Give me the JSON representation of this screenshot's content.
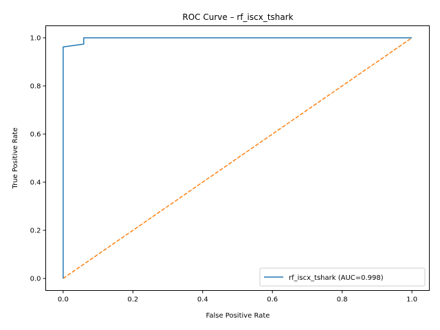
{
  "chart_data": {
    "type": "line",
    "title": "ROC Curve – rf_iscx_tshark",
    "xlabel": "False Positive Rate",
    "ylabel": "True Positive Rate",
    "xlim": [
      -0.05,
      1.05
    ],
    "ylim": [
      -0.05,
      1.05
    ],
    "xticks": [
      "0.0",
      "0.2",
      "0.4",
      "0.6",
      "0.8",
      "1.0"
    ],
    "yticks": [
      "0.0",
      "0.2",
      "0.4",
      "0.6",
      "0.8",
      "1.0"
    ],
    "grid": false,
    "legend_position": "lower-right",
    "series": [
      {
        "name": "rf_iscx_tshark (AUC=0.998)",
        "color": "#1f77b4",
        "style": "solid",
        "x": [
          0.0,
          0.0,
          0.059,
          0.059,
          1.0
        ],
        "y": [
          0.0,
          0.962,
          0.974,
          1.0,
          1.0
        ]
      },
      {
        "color": "#ff7f0e",
        "style": "dashed",
        "x": [
          0.0,
          1.0
        ],
        "y": [
          0.0,
          1.0
        ]
      }
    ]
  }
}
